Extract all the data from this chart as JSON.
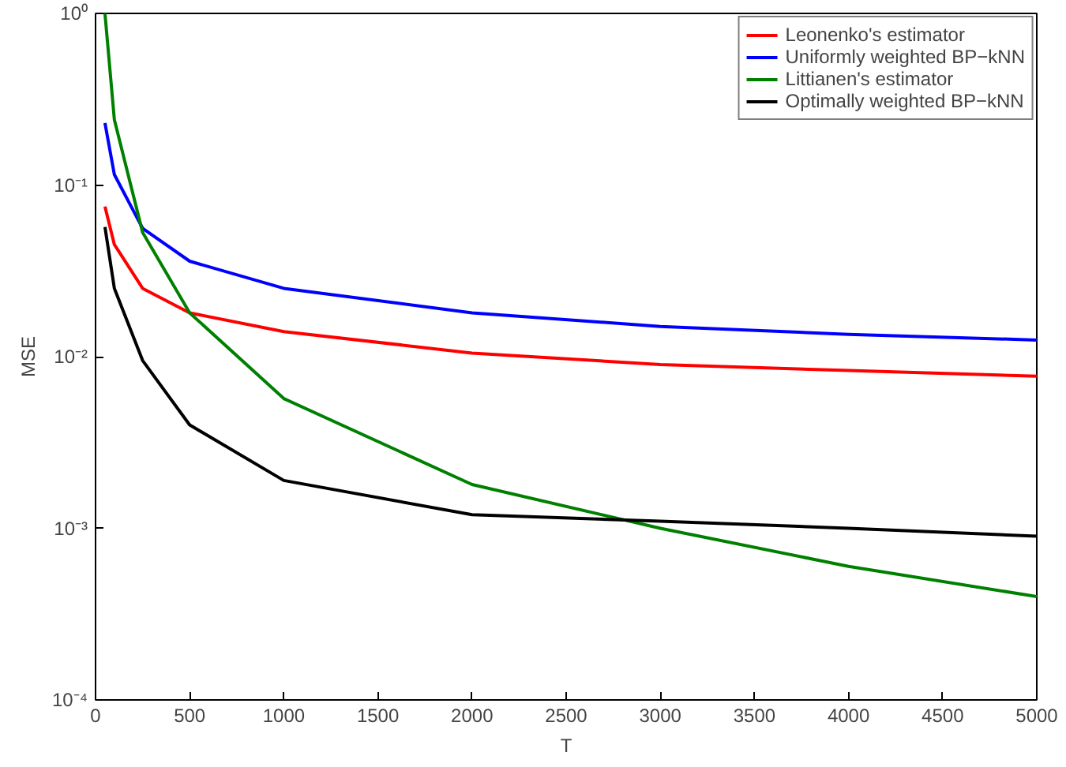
{
  "chart_data": {
    "type": "line",
    "xlabel": "T",
    "ylabel": "MSE",
    "log": "y",
    "grid": false,
    "legend": "top right",
    "line_style": "solid",
    "marker": "none",
    "x": [
      50,
      100,
      250,
      500,
      1000,
      2000,
      3000,
      4000,
      5000
    ],
    "xlim": [
      0,
      5000
    ],
    "xticks": [
      0,
      500,
      1000,
      1500,
      2000,
      2500,
      3000,
      3500,
      4000,
      4500,
      5000
    ],
    "ylim": [
      0.0001,
      1
    ],
    "yticks": [
      {
        "value": 0.0001,
        "label": "10⁻⁴"
      },
      {
        "value": 0.001,
        "label": "10⁻³"
      },
      {
        "value": 0.01,
        "label": "10⁻²"
      },
      {
        "value": 0.1,
        "label": "10⁻¹"
      },
      {
        "value": 1,
        "label": "10⁰"
      }
    ],
    "series": [
      {
        "name": "Leonenko's estimator",
        "color": "#ff0000",
        "values": [
          0.075,
          0.045,
          0.025,
          0.018,
          0.014,
          0.0105,
          0.009,
          0.0083,
          0.0077
        ]
      },
      {
        "name": "Uniformly weighted BP−kNN",
        "color": "#0000ff",
        "values": [
          0.23,
          0.115,
          0.056,
          0.036,
          0.025,
          0.018,
          0.015,
          0.0135,
          0.0125
        ]
      },
      {
        "name": "Littianen's estimator",
        "color": "#008000",
        "values": [
          1.0,
          0.24,
          0.053,
          0.018,
          0.0057,
          0.0018,
          0.001,
          0.0006,
          0.0004
        ]
      },
      {
        "name": "Optimally weighted BP−kNN",
        "color": "#000000",
        "values": [
          0.057,
          0.025,
          0.0095,
          0.004,
          0.0019,
          0.0012,
          0.0011,
          0.001,
          0.0009
        ]
      }
    ]
  }
}
